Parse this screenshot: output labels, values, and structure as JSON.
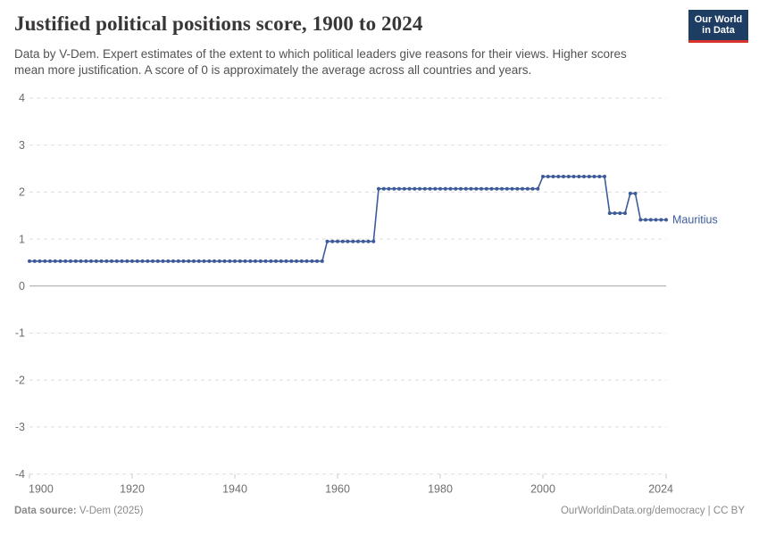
{
  "header": {
    "title": "Justified political positions score, 1900 to 2024",
    "subtitle": "Data by V-Dem. Expert estimates of the extent to which political leaders give reasons for their views. Higher scores mean more justification. A score of 0 is approximately the average across all countries and years.",
    "logo": {
      "line1": "Our World",
      "line2": "in Data",
      "bg_color": "#1d3d63",
      "accent_color": "#d7342e"
    }
  },
  "chart_data": {
    "type": "line",
    "title": "Justified political positions score, 1900 to 2024",
    "xlabel": "",
    "ylabel": "",
    "x_axis": {
      "min": 1900,
      "max": 2024,
      "ticks": [
        1900,
        1920,
        1940,
        1960,
        1980,
        2000,
        2024
      ]
    },
    "y_axis": {
      "min": -4,
      "max": 4,
      "ticks": [
        4,
        3,
        2,
        1,
        0,
        -1,
        -2,
        -3,
        -4
      ],
      "zero_line": true
    },
    "grid": true,
    "legend_position": "end-of-line-label",
    "series": [
      {
        "name": "Mauritius",
        "color": "#3d5b99",
        "marker": "circle",
        "segments": [
          {
            "from": 1900,
            "to": 1957,
            "value": 0.53
          },
          {
            "from": 1958,
            "to": 1967,
            "value": 0.95
          },
          {
            "from": 1968,
            "to": 1999,
            "value": 2.07
          },
          {
            "from": 2000,
            "to": 2012,
            "value": 2.33
          },
          {
            "from": 2013,
            "to": 2016,
            "value": 1.55
          },
          {
            "from": 2017,
            "to": 2018,
            "value": 1.97
          },
          {
            "from": 2019,
            "to": 2024,
            "value": 1.41
          }
        ]
      }
    ],
    "colors": {
      "gridline": "#dcdcdc",
      "zero_line": "#a3a3a3",
      "tick_mark": "#c8c8c8",
      "axis_text": "#6e6e6e"
    }
  },
  "footer": {
    "source_label": "Data source:",
    "source_value": " V-Dem (2025)",
    "attribution": "OurWorldinData.org/democracy | CC BY"
  }
}
